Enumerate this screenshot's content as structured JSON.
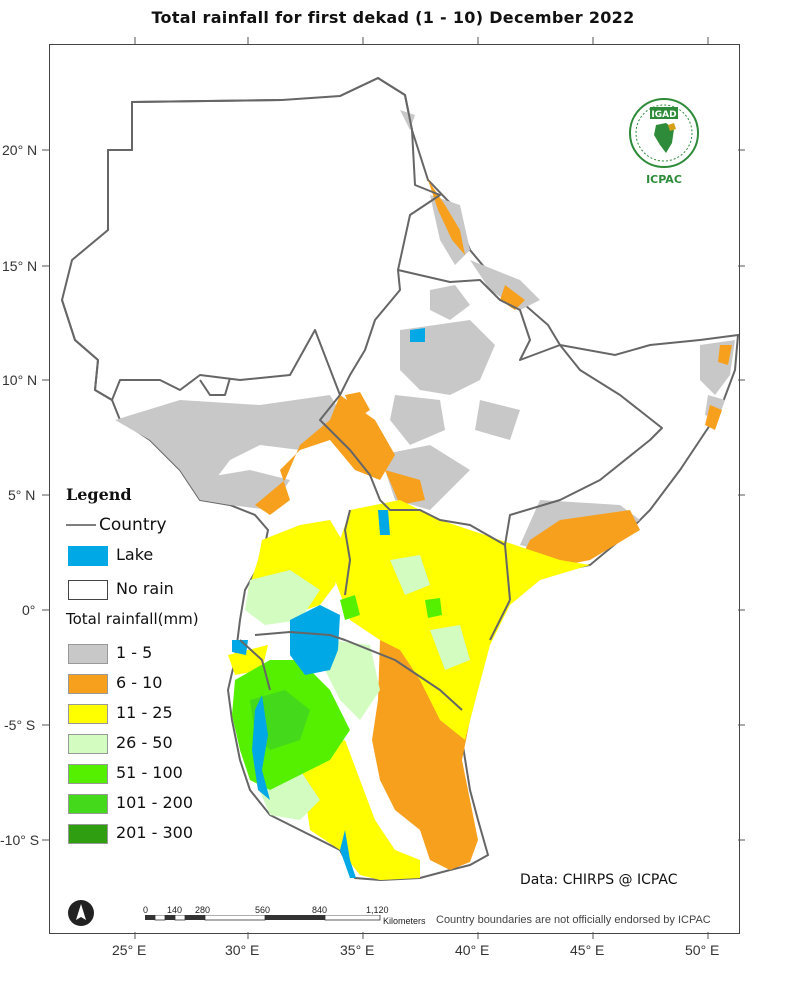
{
  "title": "Total rainfall  for  first  dekad (1 - 10)  December 2022",
  "map": {
    "latitude_labels": [
      "20° N",
      "15° N",
      "10° N",
      "5° N",
      "0°",
      "-5° S",
      "-10° S"
    ],
    "longitude_labels": [
      "25° E",
      "30° E",
      "35° E",
      "40° E",
      "45° E",
      "50° E"
    ]
  },
  "legend": {
    "title": "Legend",
    "country_label": "Country",
    "lake_label": "Lake",
    "no_rain_label": "No rain",
    "rainfall_title": "Total rainfall(mm)",
    "classes": [
      {
        "label": "1 - 5",
        "color": "#c8c8c8"
      },
      {
        "label": "6 - 10",
        "color": "#f7a01e"
      },
      {
        "label": "11 - 25",
        "color": "#ffff00"
      },
      {
        "label": "26 - 50",
        "color": "#d3fcc0"
      },
      {
        "label": "51 - 100",
        "color": "#55f000"
      },
      {
        "label": "101 - 200",
        "color": "#44d91a"
      },
      {
        "label": "201 - 300",
        "color": "#2f9e10"
      }
    ],
    "lake_color": "#00a8e6",
    "border_color": "#666666"
  },
  "logo": {
    "top_text": "IGAD",
    "bottom_text": "ICPAC"
  },
  "credit": "Data: CHIRPS @ ICPAC",
  "disclaimer": "Country boundaries are not officially endorsed by ICPAC",
  "scalebar": {
    "ticks": [
      "0",
      "140",
      "280",
      "560",
      "840",
      "1,120"
    ],
    "unit": "Kilometers"
  }
}
